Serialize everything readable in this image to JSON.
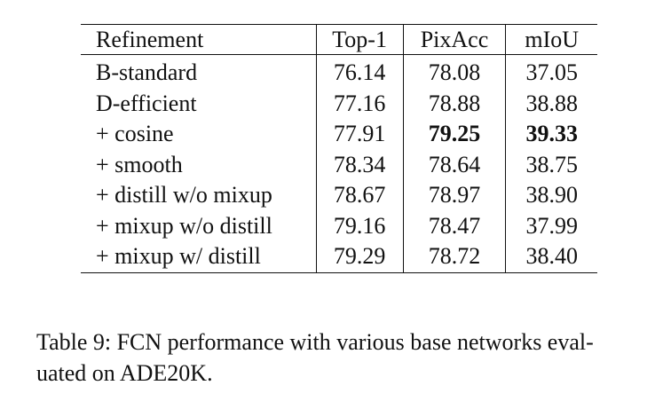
{
  "table": {
    "headers": [
      "Refinement",
      "Top-1",
      "PixAcc",
      "mIoU"
    ],
    "rows": [
      {
        "name": "B-standard",
        "top1": "76.14",
        "pixacc": "78.08",
        "miou": "37.05"
      },
      {
        "name": "D-efficient",
        "top1": "77.16",
        "pixacc": "78.88",
        "miou": "38.88"
      },
      {
        "name": "+ cosine",
        "top1": "77.91",
        "pixacc": "79.25",
        "miou": "39.33"
      },
      {
        "name": "+ smooth",
        "top1": "78.34",
        "pixacc": "78.64",
        "miou": "38.75"
      },
      {
        "name": "+ distill w/o mixup",
        "top1": "78.67",
        "pixacc": "78.97",
        "miou": "38.90"
      },
      {
        "name": "+ mixup w/o distill",
        "top1": "79.16",
        "pixacc": "78.47",
        "miou": "37.99"
      },
      {
        "name": "+ mixup w/ distill",
        "top1": "79.29",
        "pixacc": "78.72",
        "miou": "38.40"
      }
    ]
  },
  "caption": {
    "line1": "Table 9: FCN performance with various base networks eval-",
    "line2": "uated on ADE20K."
  }
}
